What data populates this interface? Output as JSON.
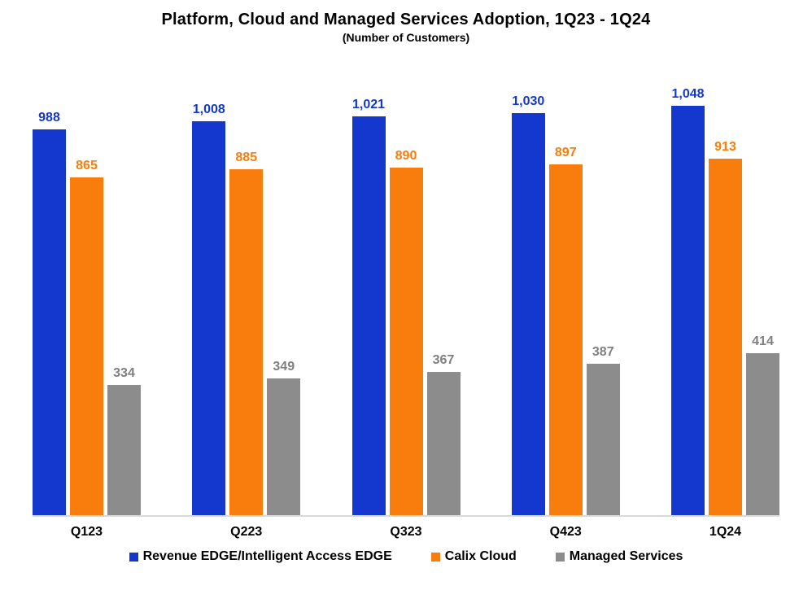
{
  "chart_data": {
    "type": "bar",
    "title": "Platform, Cloud and Managed Services Adoption, 1Q23 - 1Q24",
    "subtitle": "(Number of Customers)",
    "categories": [
      "Q123",
      "Q223",
      "Q323",
      "Q423",
      "1Q24"
    ],
    "series": [
      {
        "name": "Revenue EDGE/Intelligent Access EDGE",
        "values": [
          988,
          1008,
          1021,
          1030,
          1048
        ],
        "color": "#1438ce",
        "label_color": "#1438ce"
      },
      {
        "name": "Calix Cloud",
        "values": [
          865,
          885,
          890,
          897,
          913
        ],
        "color": "#f97d0c",
        "label_color": "#f97d0c"
      },
      {
        "name": "Managed Services",
        "values": [
          334,
          349,
          367,
          387,
          414
        ],
        "color": "#8c8c8c",
        "label_color": "#7f7f7f"
      }
    ],
    "ylim": [
      0,
      1100
    ],
    "grid": false,
    "y_axis_visible": false,
    "baseline_color": "#d9d9d9",
    "legend_position": "bottom",
    "data_labels": true
  }
}
